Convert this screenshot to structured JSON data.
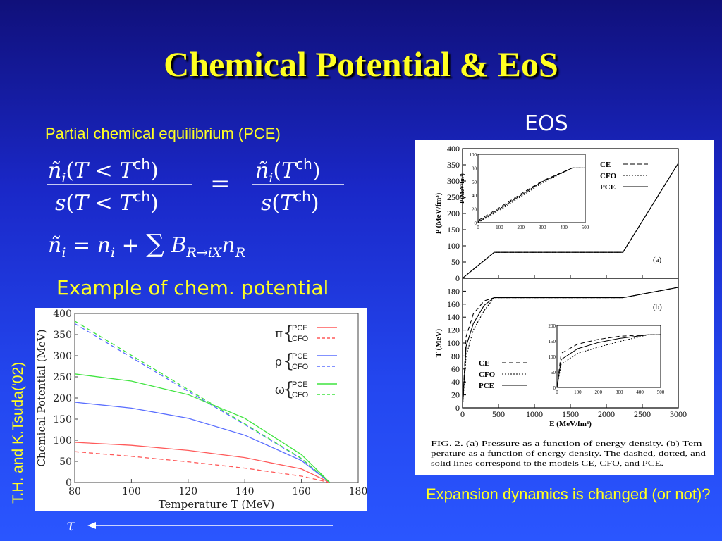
{
  "slide": {
    "title": "Chemical Potential & EoS",
    "eos_label": "EOS",
    "pce_heading": "Partial chemical equilibrium (PCE)",
    "example_label": "Example of chem. potential",
    "authors_label": "T.H. and K.Tsuda('02)",
    "expansion_note": "Expansion dynamics is changed (or not)?",
    "tau_symbol": "τ"
  },
  "equations": {
    "eq1_lhs_num": "ñi(T < Tch)",
    "eq1_lhs_den": "s(T < Tch)",
    "eq1_rhs_num": "ñi(Tch)",
    "eq1_rhs_den": "s(Tch)",
    "eq2": "ñi = ni + Σ BR→iX nR"
  },
  "figure_right": {
    "caption_line1": "FIG. 2.  (a) Pressure as a function of energy density. (b) Tem-",
    "caption_line2": "perature as a function of energy density. The dashed, dotted, and",
    "caption_line3": "solid lines correspond to the models CE, CFO, and PCE.",
    "panel_a_tag": "(a)",
    "panel_b_tag": "(b)",
    "xlabel": "E  (MeV/fm³)",
    "ylabel_a": "P  (MeV/fm³)",
    "ylabel_b": "T  (MeV)",
    "inset_a_ylabel": "P (MeV/fm³)"
  },
  "chart_data": [
    {
      "type": "line",
      "xlabel": "Temperature  T  (MeV)",
      "ylabel": "Chemical Potential  (MeV)",
      "xlim": [
        80,
        180
      ],
      "ylim": [
        0,
        400
      ],
      "xticks": [
        80,
        100,
        120,
        140,
        160,
        180
      ],
      "yticks": [
        0,
        50,
        100,
        150,
        200,
        250,
        300,
        350,
        400
      ],
      "legend_position": "top-right",
      "legend_groups": [
        {
          "symbol": "π",
          "entries": [
            "PCE",
            "CFO"
          ],
          "color": "#ff5a5a"
        },
        {
          "symbol": "ρ",
          "entries": [
            "PCE",
            "CFO"
          ],
          "color": "#5a6eff"
        },
        {
          "symbol": "ω",
          "entries": [
            "PCE",
            "CFO"
          ],
          "color": "#3fe43f"
        }
      ],
      "series": [
        {
          "group": "π",
          "style": "solid",
          "color": "#ff5a5a",
          "x": [
            80,
            100,
            120,
            140,
            160,
            170
          ],
          "y": [
            95,
            88,
            76,
            59,
            32,
            0
          ]
        },
        {
          "group": "π",
          "style": "dashed",
          "color": "#ff5a5a",
          "x": [
            80,
            100,
            120,
            140,
            160,
            170
          ],
          "y": [
            73,
            62,
            49,
            34,
            15,
            0
          ]
        },
        {
          "group": "ρ",
          "style": "solid",
          "color": "#5a6eff",
          "x": [
            80,
            100,
            120,
            140,
            160,
            170
          ],
          "y": [
            190,
            176,
            152,
            112,
            52,
            0
          ]
        },
        {
          "group": "ρ",
          "style": "dashed",
          "color": "#5a6eff",
          "x": [
            80,
            100,
            120,
            140,
            160,
            170
          ],
          "y": [
            376,
            296,
            216,
            137,
            56,
            0
          ]
        },
        {
          "group": "ω",
          "style": "solid",
          "color": "#3fe43f",
          "x": [
            80,
            100,
            120,
            140,
            160,
            170
          ],
          "y": [
            257,
            240,
            208,
            152,
            66,
            0
          ]
        },
        {
          "group": "ω",
          "style": "dashed",
          "color": "#3fe43f",
          "x": [
            80,
            100,
            120,
            140,
            160,
            170
          ],
          "y": [
            382,
            301,
            220,
            139,
            57,
            0
          ]
        }
      ]
    },
    {
      "type": "line",
      "panel": "(a)",
      "xlabel": "E  (MeV/fm³)",
      "ylabel": "P  (MeV/fm³)",
      "xlim": [
        0,
        3000
      ],
      "ylim": [
        0,
        400
      ],
      "xticks": [
        0,
        500,
        1000,
        1500,
        2000,
        2500,
        3000
      ],
      "yticks": [
        0,
        50,
        100,
        150,
        200,
        250,
        300,
        350,
        400
      ],
      "legend_position": "top-right",
      "series": [
        {
          "name": "CE",
          "style": "dashed",
          "x": [
            0,
            440,
            2230,
            3000
          ],
          "y": [
            0,
            80,
            80,
            355
          ]
        },
        {
          "name": "CFO",
          "style": "dotted",
          "x": [
            0,
            440,
            2230,
            3000
          ],
          "y": [
            0,
            80,
            80,
            355
          ]
        },
        {
          "name": "PCE",
          "style": "solid",
          "x": [
            0,
            440,
            2230,
            3000
          ],
          "y": [
            0,
            80,
            80,
            355
          ]
        }
      ],
      "inset": {
        "xlim": [
          0,
          500
        ],
        "ylim": [
          0,
          100
        ],
        "xticks": [
          0,
          100,
          200,
          300,
          400,
          500
        ],
        "yticks": [
          0,
          20,
          40,
          60,
          80,
          100
        ],
        "series": [
          {
            "name": "CE",
            "style": "dashed",
            "x": [
              0,
              100,
              200,
              300,
              440,
              500
            ],
            "y": [
              3,
              22,
              42,
              61,
              80,
              80
            ]
          },
          {
            "name": "CFO",
            "style": "dotted",
            "x": [
              0,
              100,
              200,
              300,
              440,
              500
            ],
            "y": [
              0,
              18,
              38,
              58,
              80,
              80
            ]
          },
          {
            "name": "PCE",
            "style": "solid",
            "x": [
              0,
              100,
              200,
              300,
              440,
              500
            ],
            "y": [
              1,
              20,
              40,
              60,
              80,
              80
            ]
          }
        ]
      }
    },
    {
      "type": "line",
      "panel": "(b)",
      "xlabel": "E  (MeV/fm³)",
      "ylabel": "T  (MeV)",
      "xlim": [
        0,
        3000
      ],
      "ylim": [
        0,
        200
      ],
      "xticks": [
        0,
        500,
        1000,
        1500,
        2000,
        2500,
        3000
      ],
      "yticks": [
        0,
        20,
        40,
        60,
        80,
        100,
        120,
        140,
        160,
        180
      ],
      "legend_position": "bottom-left",
      "series": [
        {
          "name": "CE",
          "style": "dashed",
          "x": [
            0,
            50,
            150,
            300,
            440,
            2230,
            3000
          ],
          "y": [
            0,
            110,
            145,
            165,
            170,
            170,
            186
          ]
        },
        {
          "name": "CFO",
          "style": "dotted",
          "x": [
            0,
            50,
            150,
            300,
            440,
            2230,
            3000
          ],
          "y": [
            0,
            80,
            120,
            150,
            170,
            170,
            186
          ]
        },
        {
          "name": "PCE",
          "style": "solid",
          "x": [
            0,
            50,
            150,
            300,
            440,
            2230,
            3000
          ],
          "y": [
            0,
            95,
            130,
            158,
            170,
            170,
            186
          ]
        }
      ],
      "inset": {
        "xlim": [
          0,
          500
        ],
        "ylim": [
          0,
          200
        ],
        "xticks": [
          0,
          100,
          200,
          300,
          400,
          500
        ],
        "yticks": [
          0,
          50,
          100,
          150,
          200
        ],
        "series": [
          {
            "name": "CE",
            "style": "dashed",
            "x": [
              0,
              20,
              100,
              200,
              300,
              440,
              500
            ],
            "y": [
              0,
              110,
              140,
              155,
              165,
              170,
              170
            ]
          },
          {
            "name": "CFO",
            "style": "dotted",
            "x": [
              0,
              20,
              100,
              200,
              300,
              440,
              500
            ],
            "y": [
              0,
              75,
              110,
              130,
              148,
              170,
              170
            ]
          },
          {
            "name": "PCE",
            "style": "solid",
            "x": [
              0,
              20,
              100,
              200,
              300,
              440,
              500
            ],
            "y": [
              0,
              90,
              125,
              145,
              158,
              170,
              170
            ]
          }
        ]
      }
    }
  ]
}
